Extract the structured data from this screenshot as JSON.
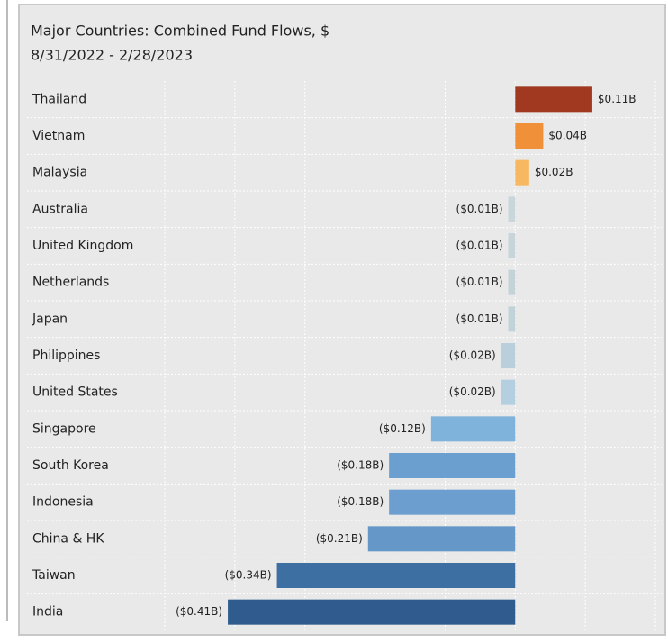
{
  "chart_data": {
    "type": "hbar",
    "title": "Major Countries:  Combined Fund Flows, $",
    "subtitle": "8/31/2022 - 2/28/2023",
    "categories": [
      "Thailand",
      "Vietnam",
      "Malaysia",
      "Australia",
      "United Kingdom",
      "Netherlands",
      "Japan",
      "Philippines",
      "United States",
      "Singapore",
      "South Korea",
      "Indonesia",
      "China & HK",
      "Taiwan",
      "India"
    ],
    "values": [
      0.11,
      0.04,
      0.02,
      -0.01,
      -0.01,
      -0.01,
      -0.01,
      -0.02,
      -0.02,
      -0.12,
      -0.18,
      -0.18,
      -0.21,
      -0.34,
      -0.41
    ],
    "value_labels": [
      "$0.11B",
      "$0.04B",
      "$0.02B",
      "($0.01B)",
      "($0.01B)",
      "($0.01B)",
      "($0.01B)",
      "($0.02B)",
      "($0.02B)",
      "($0.12B)",
      "($0.18B)",
      "($0.18B)",
      "($0.21B)",
      "($0.34B)",
      "($0.41B)"
    ],
    "colors": [
      "#a0391f",
      "#f0913a",
      "#f7b862",
      "#c9d6da",
      "#c7d5db",
      "#c3d3d8",
      "#c1d2d9",
      "#b9d0dc",
      "#b3cfe0",
      "#7fb3dc",
      "#6a9fcf",
      "#6c9fd0",
      "#6598c8",
      "#3d6fa3",
      "#2f5b8e"
    ],
    "xlim": [
      -0.5,
      0.2
    ],
    "xticks": [
      -0.5,
      -0.4,
      -0.3,
      -0.2,
      -0.1,
      0,
      0.1,
      0.2
    ],
    "grid": true
  }
}
